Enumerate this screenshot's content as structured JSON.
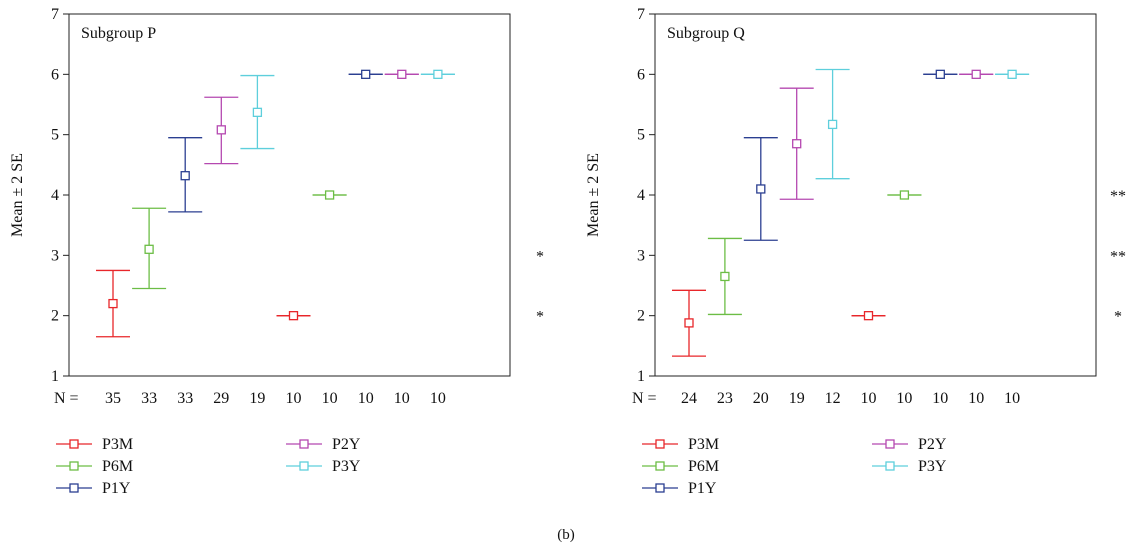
{
  "figure_label": "(b)",
  "legend_entries": [
    {
      "label": "P3M",
      "color": "#e8262a"
    },
    {
      "label": "P6M",
      "color": "#6cbd45"
    },
    {
      "label": "P1Y",
      "color": "#2b3f91"
    },
    {
      "label": "P2Y",
      "color": "#b548b0"
    },
    {
      "label": "P3Y",
      "color": "#5ecfdc"
    }
  ],
  "chart_data": [
    {
      "type": "errorbar",
      "title": "Subgroup P",
      "ylabel": "Mean ± 2 SE",
      "ylim": [
        1,
        7
      ],
      "yticks": [
        1,
        2,
        3,
        4,
        5,
        6,
        7
      ],
      "n_label": "N =",
      "n_values": [
        "35",
        "33",
        "33",
        "29",
        "19",
        "10",
        "10",
        "10",
        "10",
        "10"
      ],
      "significance": [
        {
          "y": 3,
          "mark": "*"
        },
        {
          "y": 2,
          "mark": "*"
        }
      ],
      "series": [
        {
          "name": "P3M",
          "color": "#e8262a",
          "mean": 2.2,
          "low": 1.65,
          "high": 2.75
        },
        {
          "name": "P6M",
          "color": "#6cbd45",
          "mean": 3.1,
          "low": 2.45,
          "high": 3.78
        },
        {
          "name": "P1Y",
          "color": "#2b3f91",
          "mean": 4.32,
          "low": 3.72,
          "high": 4.95
        },
        {
          "name": "P2Y",
          "color": "#b548b0",
          "mean": 5.08,
          "low": 4.52,
          "high": 5.62
        },
        {
          "name": "P3Y",
          "color": "#5ecfdc",
          "mean": 5.37,
          "low": 4.77,
          "high": 5.98
        },
        {
          "name": "P3M",
          "color": "#e8262a",
          "mean": 2.0,
          "low": 2.0,
          "high": 2.0
        },
        {
          "name": "P6M",
          "color": "#6cbd45",
          "mean": 4.0,
          "low": 4.0,
          "high": 4.0
        },
        {
          "name": "P1Y",
          "color": "#2b3f91",
          "mean": 6.0,
          "low": 6.0,
          "high": 6.0
        },
        {
          "name": "P2Y",
          "color": "#b548b0",
          "mean": 6.0,
          "low": 6.0,
          "high": 6.0
        },
        {
          "name": "P3Y",
          "color": "#5ecfdc",
          "mean": 6.0,
          "low": 6.0,
          "high": 6.0
        }
      ]
    },
    {
      "type": "errorbar",
      "title": "Subgroup Q",
      "ylabel": "Mean ± 2 SE",
      "ylim": [
        1,
        7
      ],
      "yticks": [
        1,
        2,
        3,
        4,
        5,
        6,
        7
      ],
      "n_label": "N =",
      "n_values": [
        "24",
        "23",
        "20",
        "19",
        "12",
        "10",
        "10",
        "10",
        "10",
        "10"
      ],
      "significance": [
        {
          "y": 4,
          "mark": "**"
        },
        {
          "y": 3,
          "mark": "**"
        },
        {
          "y": 2,
          "mark": "*"
        }
      ],
      "series": [
        {
          "name": "P3M",
          "color": "#e8262a",
          "mean": 1.88,
          "low": 1.33,
          "high": 2.42
        },
        {
          "name": "P6M",
          "color": "#6cbd45",
          "mean": 2.65,
          "low": 2.02,
          "high": 3.28
        },
        {
          "name": "P1Y",
          "color": "#2b3f91",
          "mean": 4.1,
          "low": 3.25,
          "high": 4.95
        },
        {
          "name": "P2Y",
          "color": "#b548b0",
          "mean": 4.85,
          "low": 3.93,
          "high": 5.77
        },
        {
          "name": "P3Y",
          "color": "#5ecfdc",
          "mean": 5.17,
          "low": 4.27,
          "high": 6.08
        },
        {
          "name": "P3M",
          "color": "#e8262a",
          "mean": 2.0,
          "low": 2.0,
          "high": 2.0
        },
        {
          "name": "P6M",
          "color": "#6cbd45",
          "mean": 4.0,
          "low": 4.0,
          "high": 4.0
        },
        {
          "name": "P1Y",
          "color": "#2b3f91",
          "mean": 6.0,
          "low": 6.0,
          "high": 6.0
        },
        {
          "name": "P2Y",
          "color": "#b548b0",
          "mean": 6.0,
          "low": 6.0,
          "high": 6.0
        },
        {
          "name": "P3Y",
          "color": "#5ecfdc",
          "mean": 6.0,
          "low": 6.0,
          "high": 6.0
        }
      ]
    }
  ]
}
